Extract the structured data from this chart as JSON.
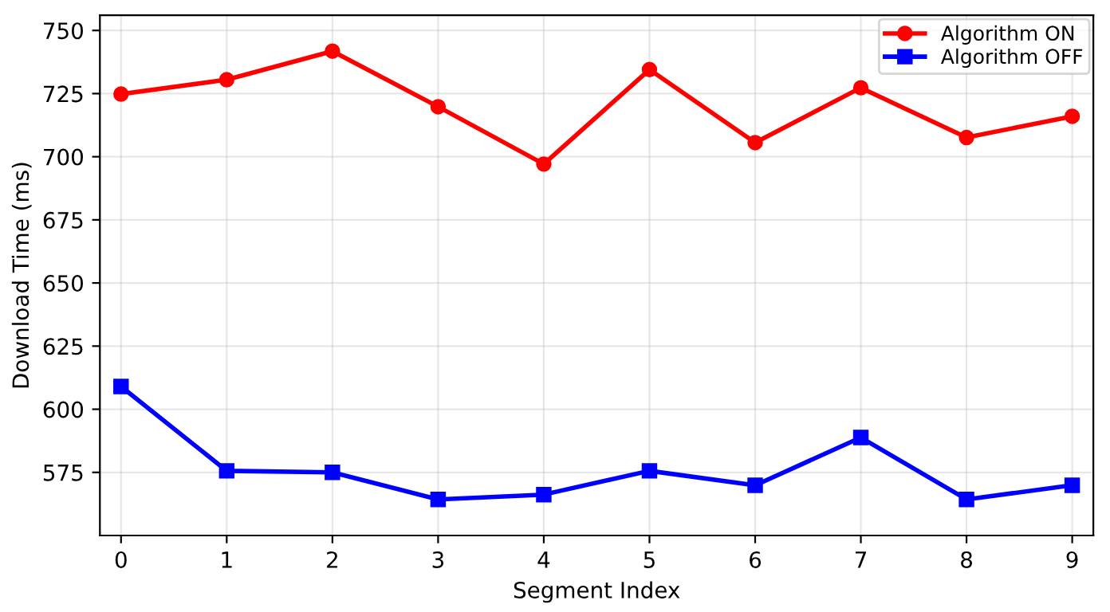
{
  "chart_data": {
    "type": "line",
    "xlabel": "Segment Index",
    "ylabel": "Download Time (ms)",
    "x": [
      0,
      1,
      2,
      3,
      4,
      5,
      6,
      7,
      8,
      9
    ],
    "series": [
      {
        "name": "Algorithm ON",
        "color": "#ff0000",
        "marker": "circle",
        "values": [
          724.8,
          730.5,
          741.8,
          719.8,
          697.1,
          734.5,
          705.6,
          727.3,
          707.6,
          716.0
        ]
      },
      {
        "name": "Algorithm OFF",
        "color": "#0000ff",
        "marker": "square",
        "values": [
          609.0,
          575.6,
          575.0,
          564.3,
          566.2,
          575.6,
          569.9,
          588.8,
          564.3,
          569.9
        ]
      }
    ],
    "xlim": [
      -0.2,
      9.2
    ],
    "ylim": [
      550,
      756
    ],
    "xticks": [
      0,
      1,
      2,
      3,
      4,
      5,
      6,
      7,
      8,
      9
    ],
    "yticks": [
      575,
      600,
      625,
      650,
      675,
      700,
      725,
      750
    ],
    "grid": true,
    "legend": "top right",
    "line_style": "solid"
  }
}
